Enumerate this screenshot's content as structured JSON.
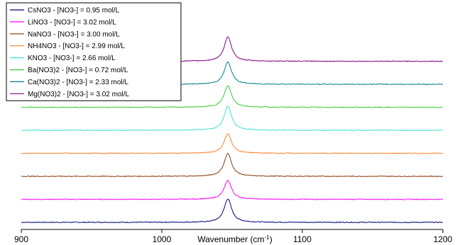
{
  "chart_data": {
    "type": "line",
    "xlabel": "Wavenumber (cm⁻¹)",
    "xlabel_main": "Wavenumber (cm",
    "xlabel_sup": "-1",
    "xlabel_close": ")",
    "xlim": [
      900,
      1200
    ],
    "x_ticks": [
      "900",
      "1000",
      "1100",
      "1200"
    ],
    "y_axis_shown": false,
    "grid": false,
    "stacked_offset": true,
    "legend": "top-left",
    "peak_center": 1047,
    "series": [
      {
        "name": "CsNO3 - [NO3-] = 0.95 mol/L",
        "color": "#000080",
        "peak_height": 3.5
      },
      {
        "name": "LiNO3 - [NO3-] = 3.02 mol/L",
        "color": "#ff00ff",
        "peak_height": 2.8
      },
      {
        "name": "NaNO3 - [NO3-] = 3.00 mol/L",
        "color": "#8b3a0f",
        "peak_height": 3.4
      },
      {
        "name": "NH4NO3 - [NO3-] = 2.99 mol/L",
        "color": "#ff7f27",
        "peak_height": 2.9
      },
      {
        "name": "KNO3 - [NO3-] = 2.66 mol/L",
        "color": "#40e0d0",
        "peak_height": 3.6
      },
      {
        "name": "Ba(NO3)2 - [NO3-] = 0.72 mol/L",
        "color": "#33cc33",
        "peak_height": 3.2
      },
      {
        "name": "Ca(NO3)2 - [NO3-] = 2.33 mol/L",
        "color": "#008080",
        "peak_height": 3.3
      },
      {
        "name": "Mg(NO3)2 - [NO3-] = 3.02 mol/L",
        "color": "#800080",
        "peak_height": 3.6
      }
    ]
  }
}
